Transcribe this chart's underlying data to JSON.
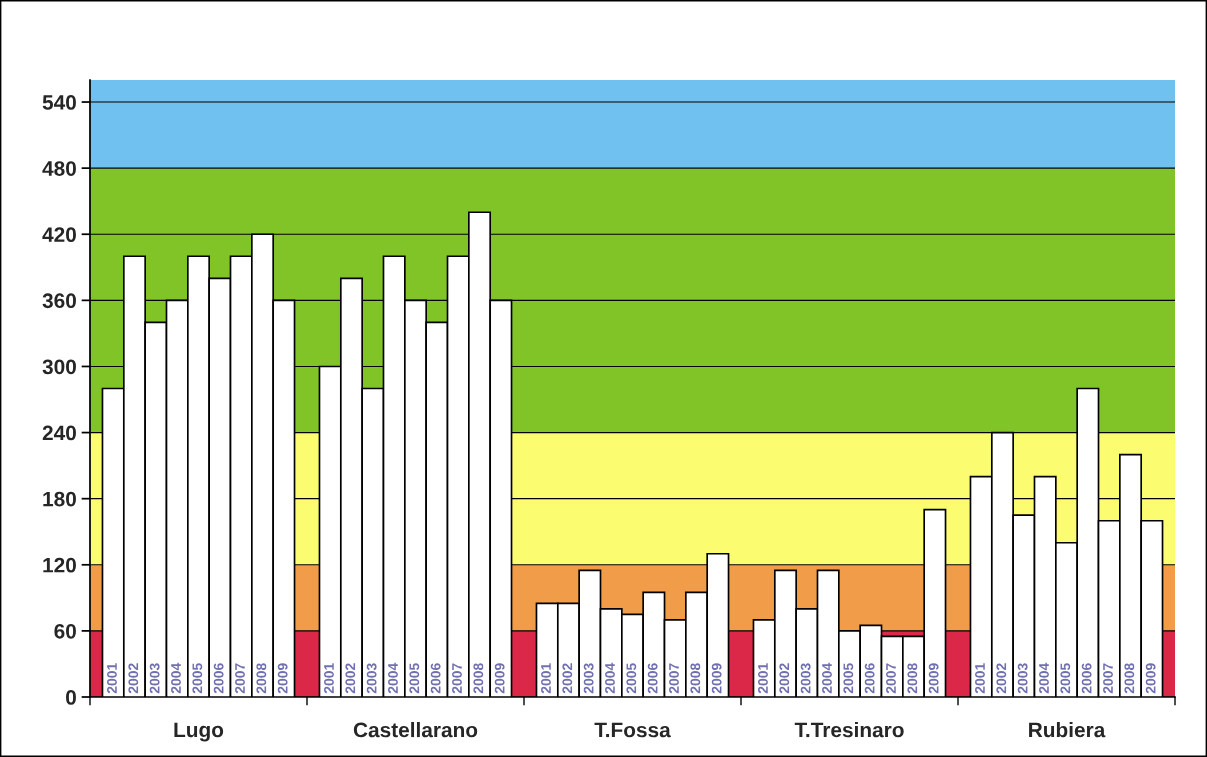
{
  "chart_data": {
    "type": "bar",
    "categories": [
      "Lugo",
      "Castellarano",
      "T.Fossa",
      "T.Tresinaro",
      "Rubiera"
    ],
    "series": [
      {
        "name": "2001",
        "color": "#ffffff",
        "values": [
          280,
          300,
          85,
          70,
          200
        ]
      },
      {
        "name": "2002",
        "color": "#ffffff",
        "values": [
          400,
          380,
          85,
          115,
          240
        ]
      },
      {
        "name": "2003",
        "color": "#ffffff",
        "values": [
          340,
          280,
          115,
          80,
          165
        ]
      },
      {
        "name": "2004",
        "color": "#ffffff",
        "values": [
          360,
          400,
          80,
          115,
          200
        ]
      },
      {
        "name": "2005",
        "color": "#ffffff",
        "values": [
          400,
          360,
          75,
          60,
          140
        ]
      },
      {
        "name": "2006",
        "color": "#ffffff",
        "values": [
          380,
          340,
          95,
          65,
          280
        ]
      },
      {
        "name": "2007",
        "color": "#ffffff",
        "values": [
          400,
          400,
          70,
          55,
          160
        ]
      },
      {
        "name": "2008",
        "color": "#ffffff",
        "values": [
          420,
          440,
          95,
          55,
          220
        ]
      },
      {
        "name": "2009",
        "color": "#ffffff",
        "values": [
          360,
          360,
          130,
          170,
          160
        ]
      }
    ],
    "ylim": [
      0,
      560
    ],
    "yticks": [
      0,
      60,
      120,
      180,
      240,
      300,
      360,
      420,
      480,
      540
    ],
    "grid": "y",
    "bands": [
      {
        "axis": "y",
        "from": 0,
        "to": 60,
        "color": "#dc2848"
      },
      {
        "axis": "y",
        "from": 60,
        "to": 120,
        "color": "#f09c48"
      },
      {
        "axis": "y",
        "from": 120,
        "to": 240,
        "color": "#fcfc70"
      },
      {
        "axis": "y",
        "from": 240,
        "to": 480,
        "color": "#80c428"
      },
      {
        "axis": "y",
        "from": 480,
        "to": 560,
        "color": "#70c0f0"
      }
    ]
  }
}
